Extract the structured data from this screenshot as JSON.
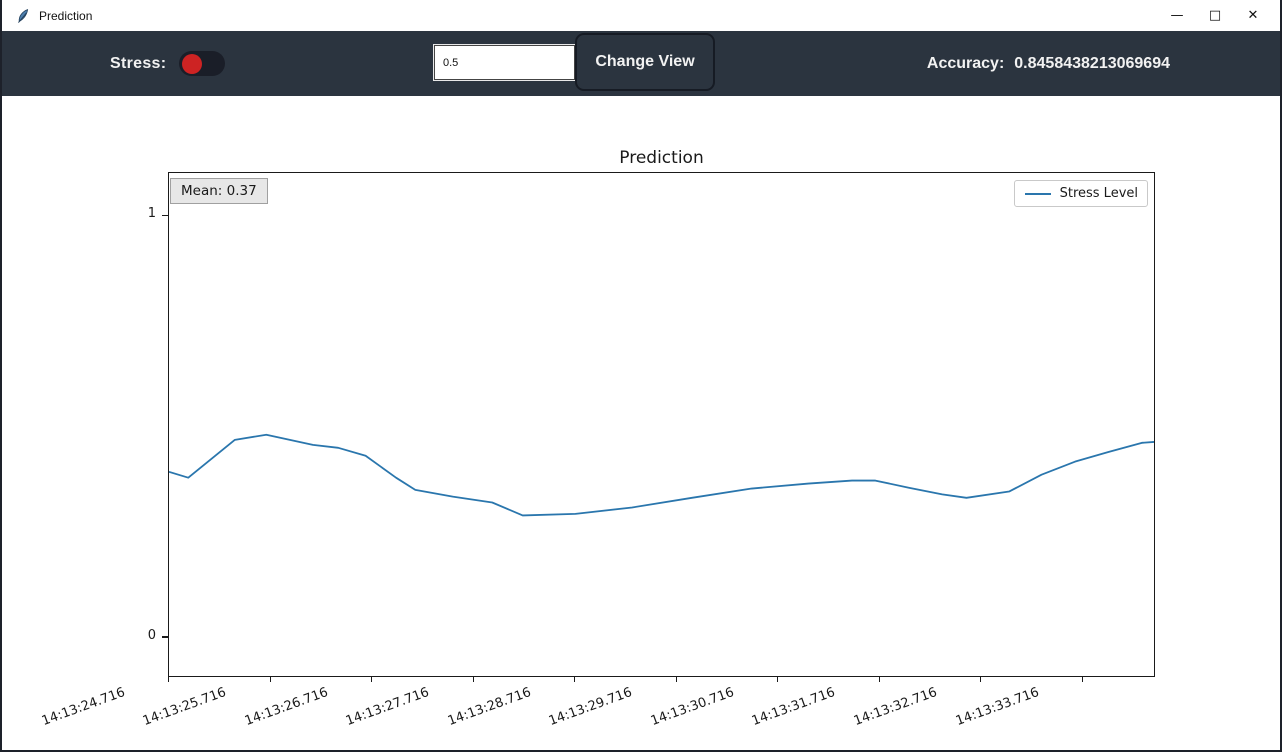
{
  "window": {
    "title": "Prediction",
    "controls": {
      "minimize": "—",
      "maximize": "□",
      "close": "✕"
    }
  },
  "toolbar": {
    "stress_label": "Stress:",
    "stress_toggle_state": "off",
    "threshold_value": "0.5",
    "change_view_label": "Change View",
    "accuracy_label": "Accuracy:",
    "accuracy_value": "0.8458438213069694",
    "colors": {
      "background": "#2b343f",
      "toggle_track": "#1a1e28",
      "toggle_knob": "#cd2323"
    }
  },
  "chart_data": {
    "type": "line",
    "title": "Prediction",
    "xlabel": "",
    "ylabel": "",
    "grid": false,
    "xlim": [
      0,
      9.72
    ],
    "ylim": [
      -0.095,
      1.102
    ],
    "x_tick_positions": [
      0,
      1,
      2,
      3,
      4,
      5,
      6,
      7,
      8,
      9
    ],
    "x_tick_labels": [
      "14:13:24.716",
      "14:13:25.716",
      "14:13:26.716",
      "14:13:27.716",
      "14:13:28.716",
      "14:13:29.716",
      "14:13:30.716",
      "14:13:31.716",
      "14:13:32.716",
      "14:13:33.716"
    ],
    "y_ticks": [
      {
        "value": 0,
        "label": "0"
      },
      {
        "value": 1,
        "label": "1"
      }
    ],
    "annotation": {
      "text": "Mean: 0.37"
    },
    "legend": {
      "position": "upper right",
      "entries": [
        "Stress Level"
      ]
    },
    "series": [
      {
        "name": "Stress Level",
        "color": "#2a76ad",
        "points": [
          [
            0.0,
            0.391
          ],
          [
            0.19,
            0.377
          ],
          [
            0.65,
            0.467
          ],
          [
            0.96,
            0.479
          ],
          [
            1.42,
            0.455
          ],
          [
            1.67,
            0.448
          ],
          [
            1.94,
            0.429
          ],
          [
            2.24,
            0.377
          ],
          [
            2.43,
            0.348
          ],
          [
            2.8,
            0.332
          ],
          [
            3.19,
            0.318
          ],
          [
            3.49,
            0.287
          ],
          [
            4.01,
            0.291
          ],
          [
            4.57,
            0.306
          ],
          [
            5.16,
            0.329
          ],
          [
            5.75,
            0.351
          ],
          [
            6.31,
            0.363
          ],
          [
            6.74,
            0.37
          ],
          [
            6.97,
            0.37
          ],
          [
            7.3,
            0.353
          ],
          [
            7.63,
            0.337
          ],
          [
            7.87,
            0.329
          ],
          [
            8.29,
            0.344
          ],
          [
            8.61,
            0.384
          ],
          [
            8.94,
            0.415
          ],
          [
            9.27,
            0.438
          ],
          [
            9.6,
            0.46
          ],
          [
            9.72,
            0.462
          ]
        ]
      }
    ]
  }
}
